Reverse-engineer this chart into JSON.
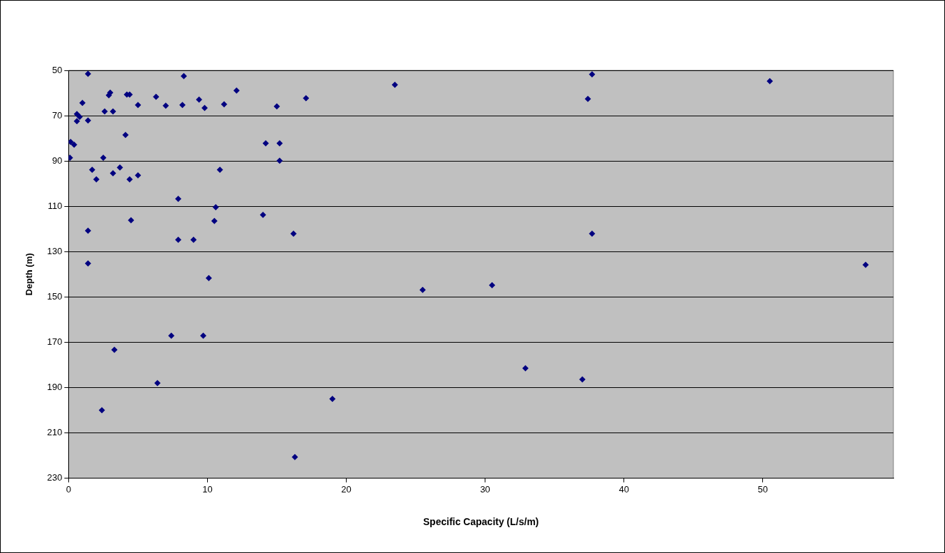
{
  "chart_data": {
    "type": "scatter",
    "xlabel": "Specific Capacity (L/s/m)",
    "ylabel": "Depth (m)",
    "xlim": [
      0,
      59.4
    ],
    "xticks": [
      0,
      10,
      20,
      30,
      40,
      50
    ],
    "ylim": [
      230,
      50
    ],
    "yticks": [
      50,
      70,
      90,
      110,
      130,
      150,
      170,
      190,
      210,
      230
    ],
    "grid": "y",
    "legend": false,
    "marker": "diamond",
    "series": [
      {
        "color": "#000080",
        "x": [
          1.4,
          8.3,
          37.7,
          50.5,
          23.5,
          12.1,
          3.0,
          2.9,
          4.2,
          4.4,
          6.3,
          9.4,
          17.1,
          37.4,
          1.0,
          11.2,
          5.0,
          7.0,
          8.2,
          9.8,
          15.0,
          2.6,
          3.2,
          0.6,
          0.8,
          0.6,
          1.4,
          4.1,
          0.15,
          0.4,
          14.2,
          15.2,
          15.2,
          0.1,
          2.5,
          1.7,
          3.7,
          10.9,
          3.2,
          5.0,
          2.0,
          4.4,
          7.9,
          10.6,
          14.0,
          4.5,
          10.5,
          1.4,
          16.2,
          37.7,
          7.9,
          9.0,
          1.4,
          57.4,
          10.1,
          30.5,
          25.5,
          7.4,
          9.7,
          3.3,
          32.9,
          37.0,
          6.4,
          19.0,
          2.4,
          16.3
        ],
        "values": [
          51.5,
          52.5,
          51.8,
          54.8,
          56.4,
          58.9,
          59.8,
          61.0,
          60.7,
          60.7,
          61.7,
          62.9,
          62.3,
          62.6,
          64.4,
          65.0,
          65.3,
          65.6,
          65.3,
          66.6,
          65.9,
          68.1,
          68.1,
          69.3,
          70.5,
          72.4,
          72.1,
          78.5,
          81.6,
          82.8,
          82.2,
          82.2,
          89.9,
          88.6,
          88.6,
          93.9,
          92.9,
          93.9,
          95.4,
          96.3,
          98.1,
          98.1,
          106.7,
          110.4,
          113.8,
          116.2,
          116.5,
          120.8,
          122.1,
          122.1,
          124.8,
          124.8,
          135.2,
          135.8,
          141.7,
          144.8,
          146.9,
          167.1,
          167.1,
          173.3,
          181.5,
          186.4,
          188.0,
          195.0,
          200.0,
          220.7
        ]
      }
    ]
  }
}
